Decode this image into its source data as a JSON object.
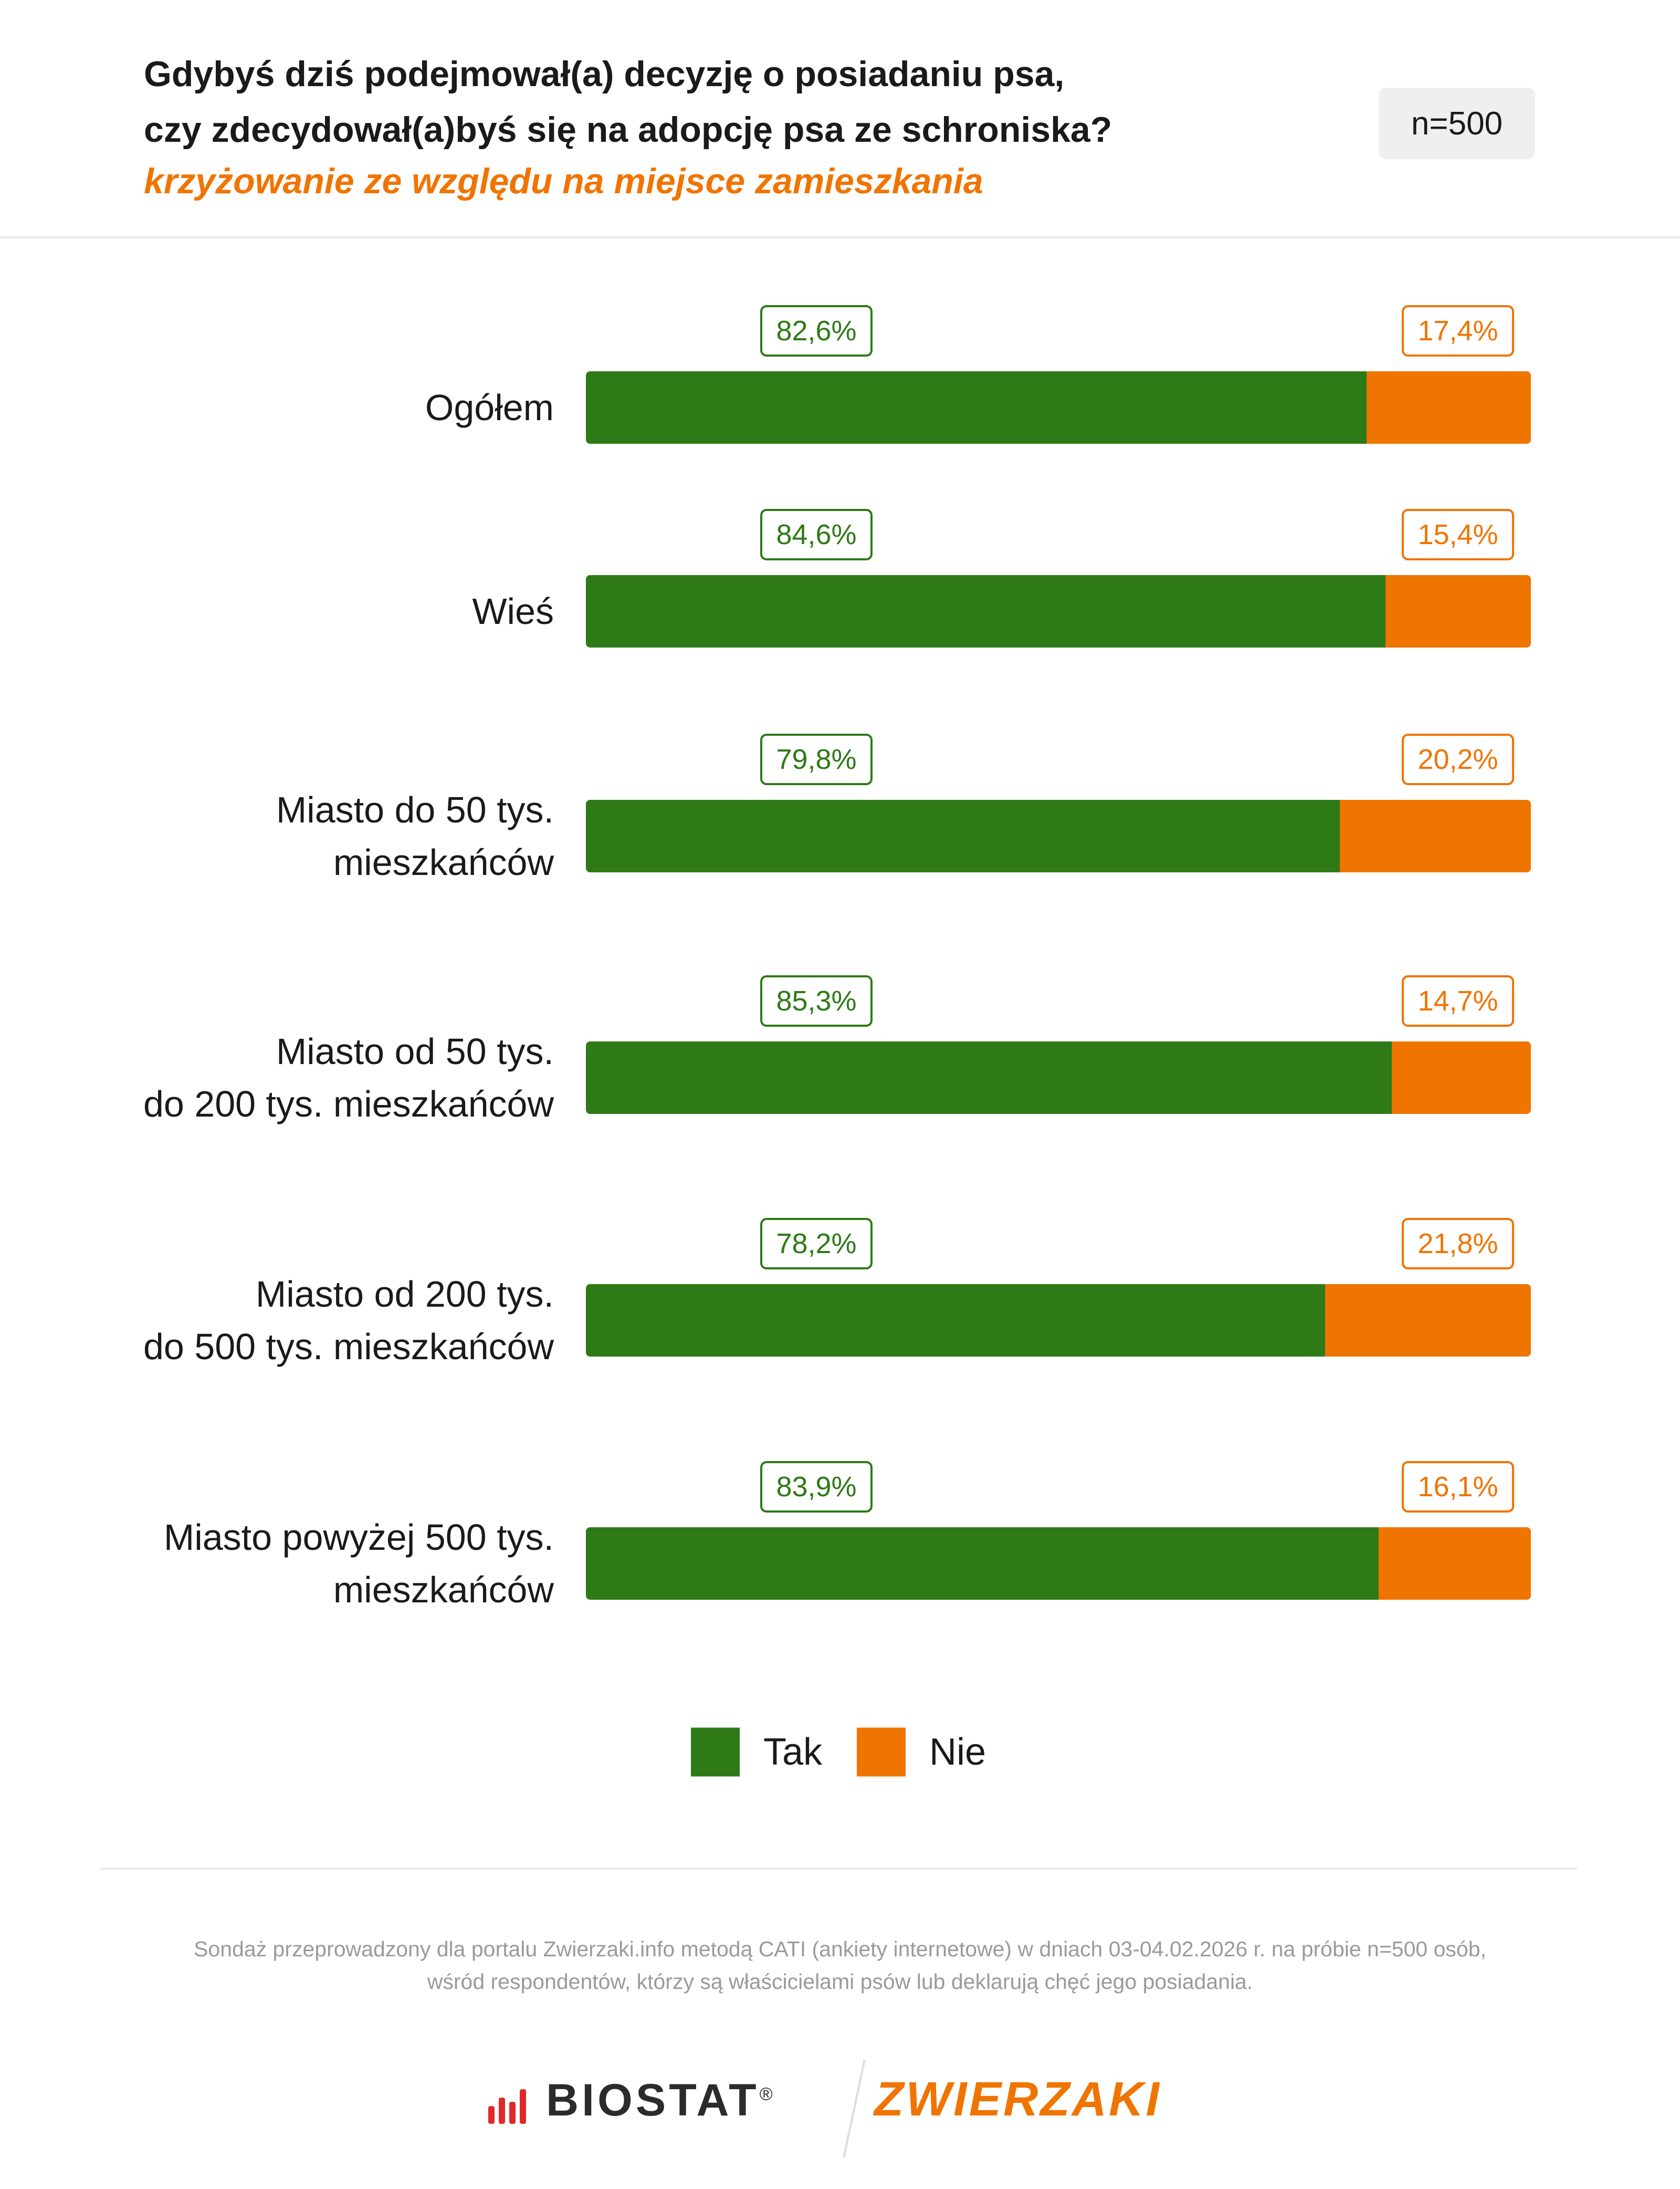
{
  "chart_data": {
    "type": "bar",
    "orientation": "horizontal",
    "stacked": true,
    "title": "Gdybyś dziś podejmował(a) decyzję o posiadaniu psa,\nczy zdecydował(a)byś się na adopcję psa ze schroniska?",
    "subtitle": "krzyżowanie ze względu na miejsce zamieszkania",
    "sample_size": "n=500",
    "categories": [
      "Ogółem",
      "Wieś",
      "Miasto do 50 tys.\nmieszkańców",
      "Miasto od 50 tys.\ndo 200 tys. mieszkańców",
      "Miasto od 200 tys.\ndo 500 tys. mieszkańców",
      "Miasto powyżej 500 tys.\nmieszkańców"
    ],
    "xlim": [
      0,
      100
    ],
    "series": [
      {
        "name": "Tak",
        "color": "#2e7a17",
        "values": [
          82.6,
          84.6,
          79.8,
          85.3,
          78.2,
          83.9
        ],
        "value_labels": [
          "82,6%",
          "84,6%",
          "79,8%",
          "85,3%",
          "78,2%",
          "83,9%"
        ]
      },
      {
        "name": "Nie",
        "color": "#f07400",
        "values": [
          17.4,
          15.4,
          20.2,
          14.7,
          21.8,
          16.1
        ],
        "value_labels": [
          "17,4%",
          "15,4%",
          "20,2%",
          "14,7%",
          "21,8%",
          "16,1%"
        ]
      }
    ],
    "note": "Sondaż przeprowadzony dla portalu Zwierzaki.info metodą CATI (ankiety internetowe) w dniach 03-04.02.2026 r. na próbie n=500 osób,\nwśród respondentów, którzy są właścicielami psów lub deklarują chęć jego posiadania.",
    "logos": [
      {
        "text": "BIOSTAT",
        "mark": "®"
      },
      {
        "text": "ZWIERZAKI"
      }
    ]
  }
}
